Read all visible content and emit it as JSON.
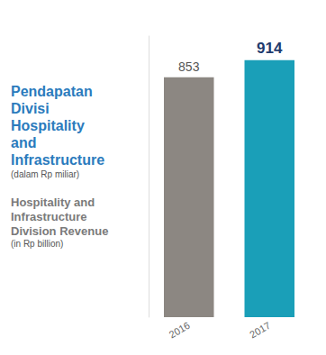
{
  "chart_data": {
    "type": "bar",
    "title": "Pendapatan Divisi Hospitality and Infrastructure",
    "subtitle": "(dalam Rp miliar)",
    "title_en": "Hospitality and Infrastructure Division Revenue",
    "subtitle_en": "(in Rp billion)",
    "categories": [
      "2016",
      "2017"
    ],
    "values": [
      853,
      914
    ],
    "colors": [
      "#8c8782",
      "#1a9fb8"
    ],
    "ylim": [
      0,
      1000
    ],
    "grid": false,
    "data_labels": true,
    "tick_labels": "x"
  }
}
